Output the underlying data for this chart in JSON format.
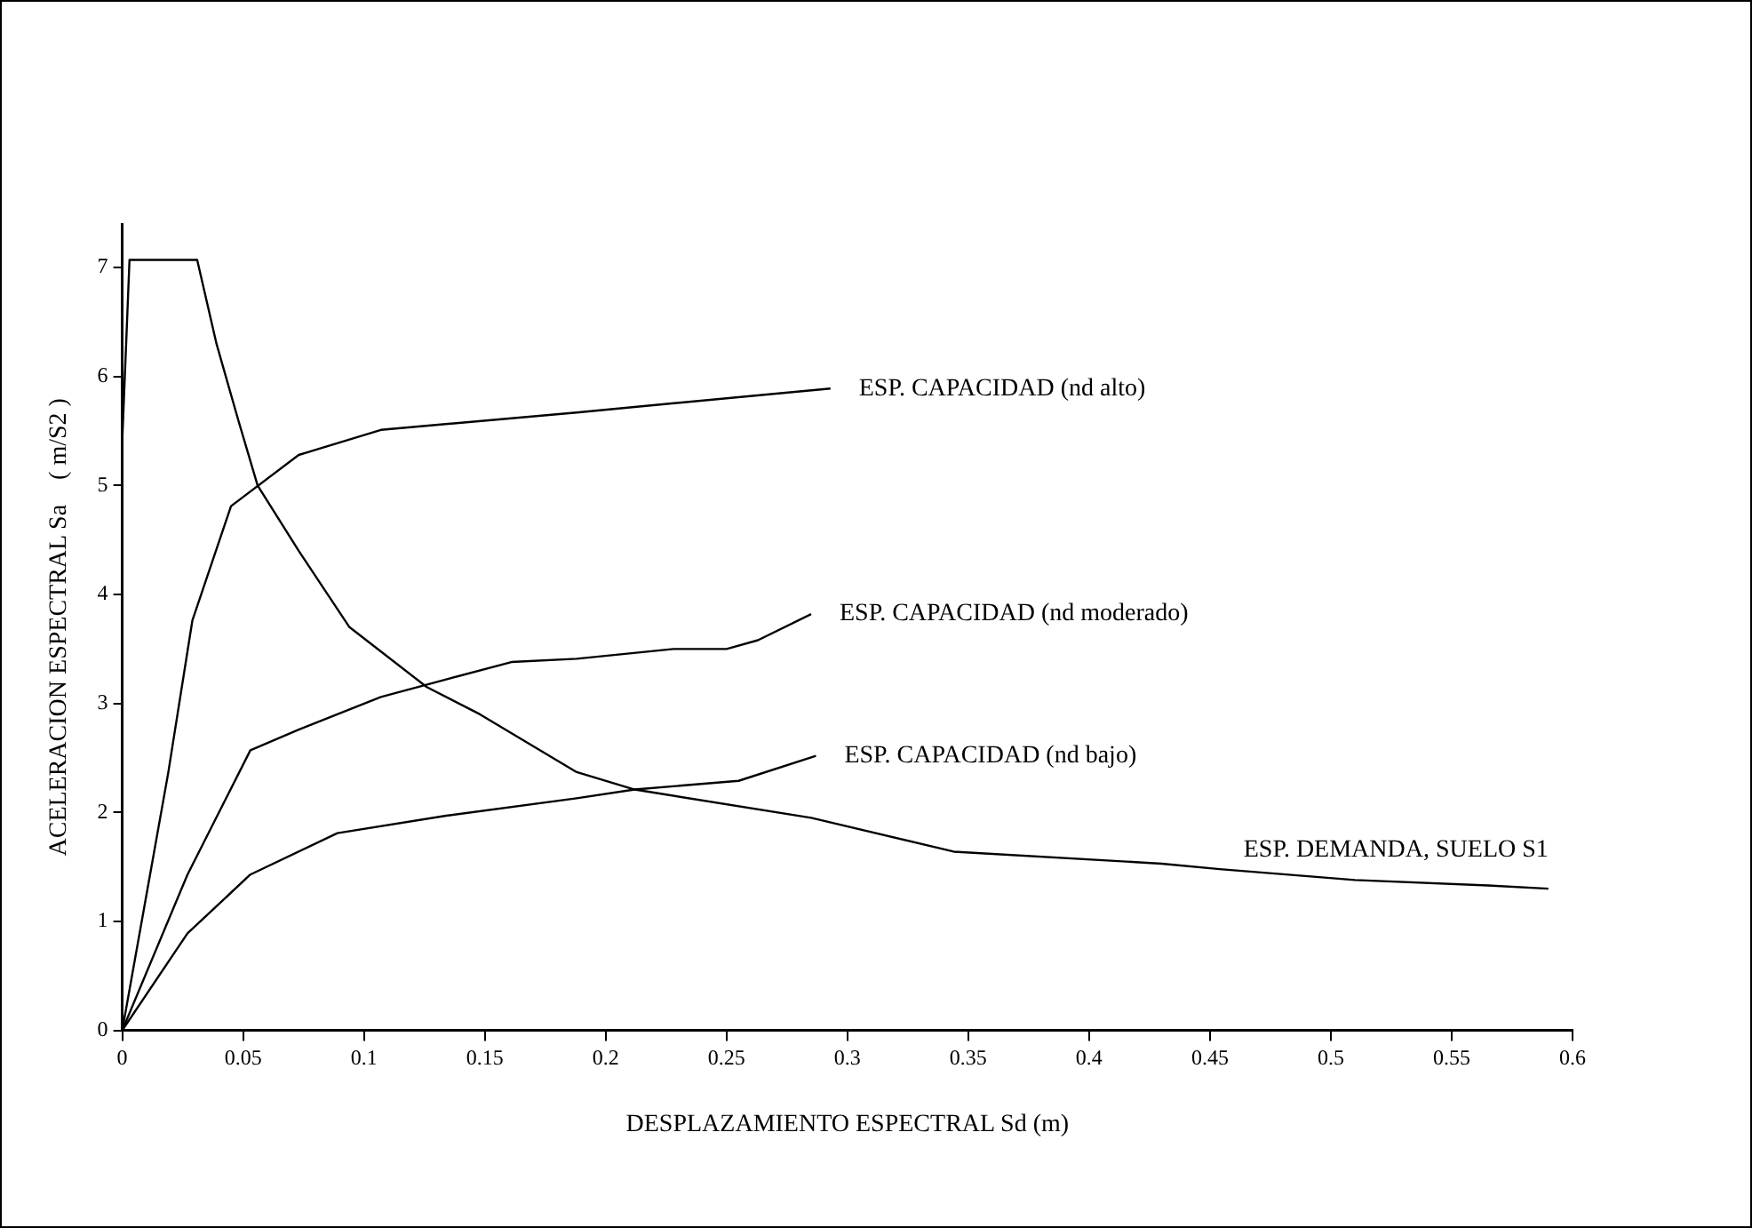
{
  "chart_data": {
    "type": "line",
    "xlabel": "DESPLAZAMIENTO ESPECTRAL Sd (m)",
    "ylabel": "ACELERACION ESPECTRAL Sa    ( m/S2 )",
    "xlim": [
      0,
      0.6
    ],
    "xticks": [
      0,
      0.05,
      0.1,
      0.15,
      0.2,
      0.25,
      0.3,
      0.35,
      0.4,
      0.45,
      0.5,
      0.55,
      0.6
    ],
    "ylim": [
      0,
      7.4
    ],
    "yticks": [
      0,
      1,
      2,
      3,
      4,
      5,
      6,
      7
    ],
    "grid": false,
    "legend": false,
    "marker": "none",
    "line_style": "solid",
    "series": [
      {
        "name": "ESP. CAPACIDAD (nd alto)",
        "color": "#000000",
        "x": [
          0,
          0.019,
          0.029,
          0.045,
          0.073,
          0.107,
          0.188,
          0.293
        ],
        "values": [
          0,
          2.36,
          3.76,
          4.81,
          5.28,
          5.51,
          5.67,
          5.89
        ]
      },
      {
        "name": "ESP. CAPACIDAD (nd moderado)",
        "color": "#000000",
        "x": [
          0,
          0.027,
          0.053,
          0.073,
          0.107,
          0.161,
          0.188,
          0.228,
          0.25,
          0.263,
          0.285
        ],
        "values": [
          0,
          1.43,
          2.57,
          2.76,
          3.06,
          3.38,
          3.41,
          3.5,
          3.5,
          3.58,
          3.82
        ]
      },
      {
        "name": "ESP. CAPACIDAD (nd bajo)",
        "color": "#000000",
        "x": [
          0,
          0.027,
          0.053,
          0.089,
          0.134,
          0.188,
          0.212,
          0.255,
          0.287
        ],
        "values": [
          0,
          0.89,
          1.43,
          1.81,
          1.97,
          2.13,
          2.21,
          2.29,
          2.52
        ]
      },
      {
        "name": "ESP. DEMANDA, SUELO S1",
        "color": "#000000",
        "x": [
          0,
          0.003,
          0.031,
          0.039,
          0.048,
          0.056,
          0.073,
          0.094,
          0.126,
          0.148,
          0.188,
          0.212,
          0.285,
          0.344,
          0.43,
          0.454,
          0.51,
          0.565,
          0.59
        ],
        "values": [
          5.41,
          7.07,
          7.07,
          6.3,
          5.6,
          5.0,
          4.4,
          3.7,
          3.15,
          2.9,
          2.37,
          2.21,
          1.95,
          1.64,
          1.53,
          1.48,
          1.38,
          1.33,
          1.3
        ]
      }
    ]
  }
}
